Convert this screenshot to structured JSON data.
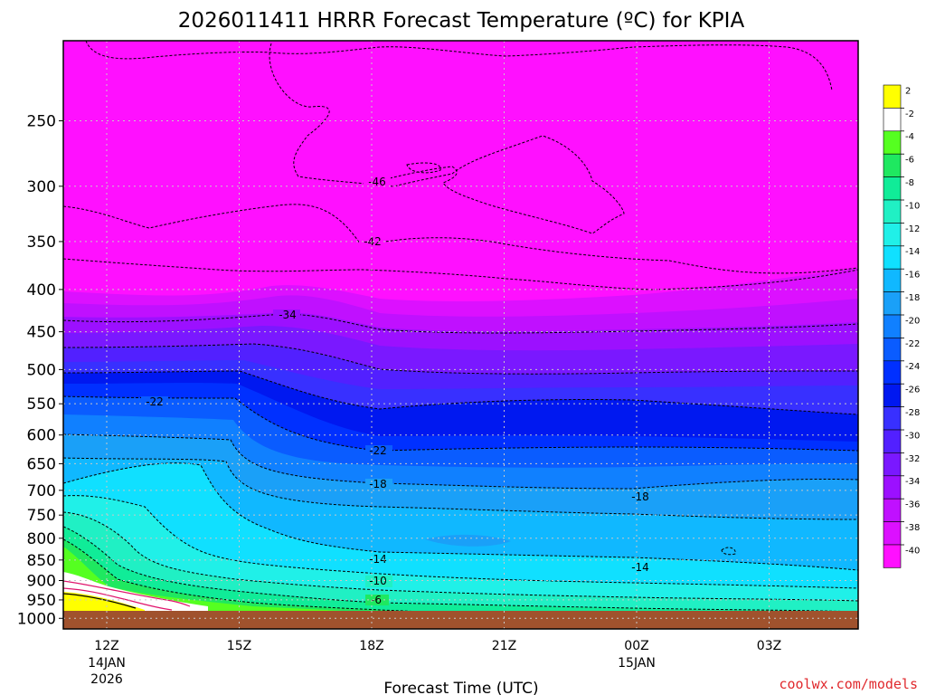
{
  "title": "2026011411 HRRR Forecast Temperature (ºC) for KPIA",
  "xlabel": "Forecast Time (UTC)",
  "credit": "coolwx.com/models",
  "colors": {
    "credit": "#e0282c",
    "ground": "#a0522d",
    "contour": "#000000",
    "freezing_line": "#e0146c"
  },
  "chart_data": {
    "type": "heatmap",
    "title": "2026011411 HRRR Forecast Temperature (ºC) for KPIA",
    "xlabel": "Forecast Time (UTC)",
    "ylabel": "",
    "y_axis": "pressure (hPa), log scale, inverted",
    "ylim": [
      1030,
      200
    ],
    "x_ticks": [
      {
        "label": "12Z",
        "sub": [
          "14JAN",
          "2026"
        ]
      },
      {
        "label": "15Z",
        "sub": []
      },
      {
        "label": "18Z",
        "sub": []
      },
      {
        "label": "21Z",
        "sub": []
      },
      {
        "label": "00Z",
        "sub": [
          "15JAN"
        ]
      },
      {
        "label": "03Z",
        "sub": []
      }
    ],
    "y_ticks": [
      250,
      300,
      350,
      400,
      450,
      500,
      550,
      600,
      650,
      700,
      750,
      800,
      850,
      900,
      950,
      1000
    ],
    "grid": true,
    "colorbar": [
      {
        "label": "2",
        "color": "#ffff00"
      },
      {
        "label": "-2",
        "color": "#ffffff"
      },
      {
        "label": "-4",
        "color": "#55ff20"
      },
      {
        "label": "-6",
        "color": "#1fe860"
      },
      {
        "label": "-8",
        "color": "#10ec98"
      },
      {
        "label": "-10",
        "color": "#20f0c4"
      },
      {
        "label": "-12",
        "color": "#20f0e8"
      },
      {
        "label": "-14",
        "color": "#10e0ff"
      },
      {
        "label": "-16",
        "color": "#10b8ff"
      },
      {
        "label": "-18",
        "color": "#1aa0f8"
      },
      {
        "label": "-20",
        "color": "#1080ff"
      },
      {
        "label": "-22",
        "color": "#0a5cff"
      },
      {
        "label": "-24",
        "color": "#0030ff"
      },
      {
        "label": "-26",
        "color": "#0018f0"
      },
      {
        "label": "-28",
        "color": "#3830ff"
      },
      {
        "label": "-30",
        "color": "#5220ff"
      },
      {
        "label": "-32",
        "color": "#7a18ff"
      },
      {
        "label": "-34",
        "color": "#9c10ff"
      },
      {
        "label": "-36",
        "color": "#c010ff"
      },
      {
        "label": "-38",
        "color": "#dc10ff"
      },
      {
        "label": "-40",
        "color": "#ff10ff"
      }
    ],
    "contour_labels": [
      "-46",
      "-42",
      "-34",
      "-22",
      "-22",
      "-18",
      "-18",
      "-14",
      "-14",
      "-10",
      "-6"
    ]
  }
}
